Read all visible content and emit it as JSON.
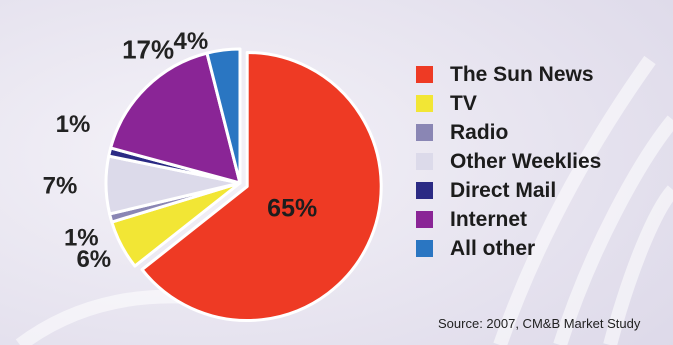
{
  "chart_data": {
    "type": "pie",
    "categories": [
      "The Sun News",
      "TV",
      "Radio",
      "Other Weeklies",
      "Direct Mail",
      "Internet",
      "All other"
    ],
    "values": [
      65,
      6,
      1,
      7,
      1,
      17,
      4
    ],
    "value_labels": [
      "65%",
      "6%",
      "1%",
      "7%",
      "1%",
      "17%",
      "4%"
    ],
    "colors": [
      "#ee3a24",
      "#f2e635",
      "#8a86b4",
      "#dcdaea",
      "#2b2a84",
      "#8a2596",
      "#2a76c2"
    ],
    "start_angle_deg": 0,
    "direction": "clockwise",
    "exploded_slice": "The Sun News",
    "legend_position": "right",
    "source": "Source: 2007, CM&B Market Study"
  }
}
